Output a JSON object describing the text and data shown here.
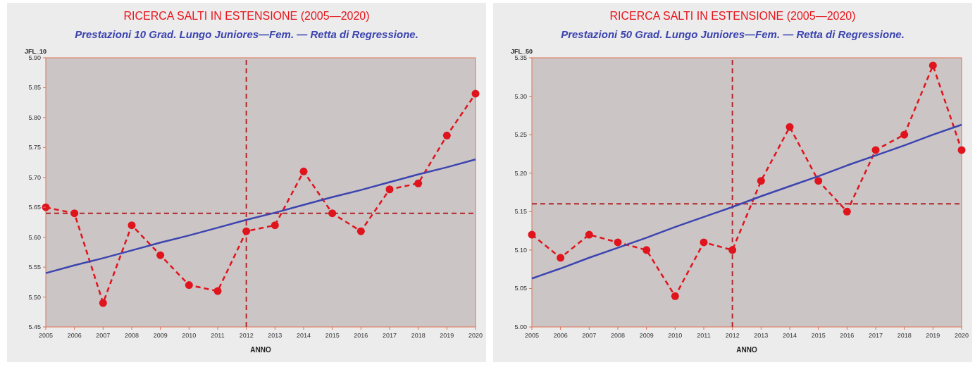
{
  "chart_data": [
    {
      "type": "line",
      "title": "RICERCA SALTI IN  ESTENSIONE (2005—2020)",
      "subtitle": "Prestazioni 10 Grad. Lungo Juniores—Fem.  —  Retta di Regressione.",
      "xlabel": "ANNO",
      "ylabel": "JFL_10",
      "x": [
        2005,
        2006,
        2007,
        2008,
        2009,
        2010,
        2011,
        2012,
        2013,
        2014,
        2015,
        2016,
        2017,
        2018,
        2019,
        2020
      ],
      "series": [
        {
          "color": "#e0141c",
          "values": [
            5.65,
            5.64,
            5.49,
            5.62,
            5.57,
            5.52,
            5.51,
            5.61,
            5.62,
            5.71,
            5.64,
            5.61,
            5.68,
            5.69,
            5.77,
            5.84
          ],
          "marker": "circle",
          "line_style": "dashed"
        },
        {
          "type": "line",
          "color": "#3c44b0",
          "values": [
            5.54,
            5.553,
            5.565,
            5.578,
            5.591,
            5.603,
            5.616,
            5.629,
            5.641,
            5.654,
            5.667,
            5.679,
            5.692,
            5.705,
            5.717,
            5.73
          ],
          "marker": "none",
          "line_style": "solid"
        }
      ],
      "xlim": [
        2005,
        2020
      ],
      "xticks": [
        2005,
        2006,
        2007,
        2008,
        2009,
        2010,
        2011,
        2012,
        2013,
        2014,
        2015,
        2016,
        2017,
        2018,
        2019,
        2020
      ],
      "ylim": [
        5.45,
        5.9
      ],
      "yticks": [
        {
          "value": 5.45,
          "label": "5.45"
        },
        {
          "value": 5.5,
          "label": "5.50"
        },
        {
          "value": 5.55,
          "label": "5.55"
        },
        {
          "value": 5.6,
          "label": "5.60"
        },
        {
          "value": 5.65,
          "label": "5.65"
        },
        {
          "value": 5.7,
          "label": "5.70"
        },
        {
          "value": 5.75,
          "label": "5.75"
        },
        {
          "value": 5.8,
          "label": "5.80"
        },
        {
          "value": 5.85,
          "label": "5.85"
        },
        {
          "value": 5.9,
          "label": "5.90"
        }
      ],
      "ref_lines": [
        {
          "axis": "y",
          "value": 5.64,
          "color": "#b0282a",
          "line_style": "dashed"
        },
        {
          "axis": "x",
          "value": 2012,
          "color": "#b0282a",
          "line_style": "dashed"
        }
      ],
      "grid": false
    },
    {
      "type": "line",
      "title": "RICERCA SALTI IN  ESTENSIONE (2005—2020)",
      "subtitle": "Prestazioni 50 Grad. Lungo Juniores—Fem.  —  Retta di Regressione.",
      "xlabel": "ANNO",
      "ylabel": "JFL_50",
      "x": [
        2005,
        2006,
        2007,
        2008,
        2009,
        2010,
        2011,
        2012,
        2013,
        2014,
        2015,
        2016,
        2017,
        2018,
        2019,
        2020
      ],
      "series": [
        {
          "color": "#e0141c",
          "values": [
            5.12,
            5.09,
            5.12,
            5.11,
            5.1,
            5.04,
            5.11,
            5.1,
            5.19,
            5.26,
            5.19,
            5.15,
            5.23,
            5.25,
            5.34,
            5.23
          ],
          "marker": "circle",
          "line_style": "dashed"
        },
        {
          "type": "line",
          "color": "#3c44b0",
          "values": [
            5.063,
            5.076,
            5.09,
            5.103,
            5.116,
            5.13,
            5.143,
            5.156,
            5.17,
            5.183,
            5.196,
            5.21,
            5.223,
            5.236,
            5.25,
            5.263
          ],
          "marker": "none",
          "line_style": "solid"
        }
      ],
      "xlim": [
        2005,
        2020
      ],
      "xticks": [
        2005,
        2006,
        2007,
        2008,
        2009,
        2010,
        2011,
        2012,
        2013,
        2014,
        2015,
        2016,
        2017,
        2018,
        2019,
        2020
      ],
      "ylim": [
        5.0,
        5.35
      ],
      "yticks": [
        {
          "value": 5.0,
          "label": "5.00"
        },
        {
          "value": 5.05,
          "label": "5.05"
        },
        {
          "value": 5.1,
          "label": "5.10"
        },
        {
          "value": 5.15,
          "label": "5.15"
        },
        {
          "value": 5.2,
          "label": "5.20"
        },
        {
          "value": 5.25,
          "label": "5.25"
        },
        {
          "value": 5.3,
          "label": "5.30"
        },
        {
          "value": 5.35,
          "label": "5.35"
        }
      ],
      "ref_lines": [
        {
          "axis": "y",
          "value": 5.16,
          "color": "#b0282a",
          "line_style": "dashed"
        },
        {
          "axis": "x",
          "value": 2012,
          "color": "#b0282a",
          "line_style": "dashed"
        }
      ],
      "grid": false
    }
  ]
}
